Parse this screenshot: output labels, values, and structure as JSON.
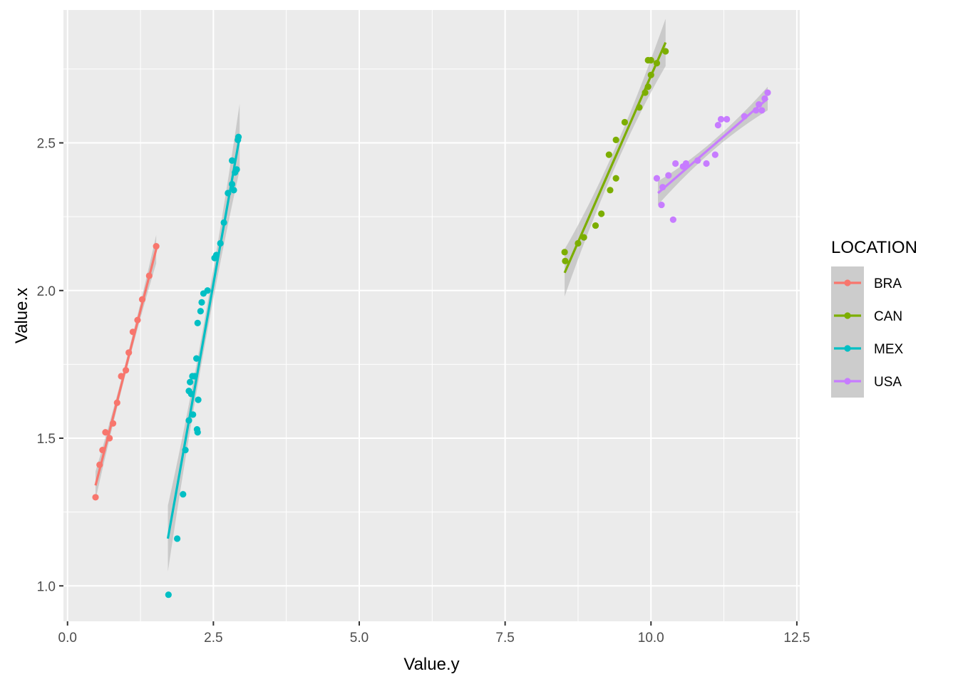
{
  "chart_data": {
    "type": "scatter",
    "xlabel": "Value.y",
    "ylabel": "Value.x",
    "xlim": [
      -0.07,
      12.55
    ],
    "ylim": [
      0.88,
      2.95
    ],
    "x_ticks": [
      0.0,
      2.5,
      5.0,
      7.5,
      10.0,
      12.5
    ],
    "x_tick_labels": [
      "0.0",
      "2.5",
      "5.0",
      "7.5",
      "10.0",
      "12.5"
    ],
    "y_ticks": [
      1.0,
      1.5,
      2.0,
      2.5
    ],
    "y_tick_labels": [
      "1.0",
      "1.5",
      "2.0",
      "2.5"
    ],
    "grid": true,
    "panel_background": "#ebebeb",
    "legend": {
      "title": "LOCATION",
      "position": "right"
    },
    "series": [
      {
        "name": "BRA",
        "color": "#f8766d",
        "fit": {
          "x0": 0.48,
          "y0": 1.34,
          "x1": 1.52,
          "y1": 2.14,
          "band": 0.03
        },
        "points": [
          [
            0.48,
            1.3
          ],
          [
            0.55,
            1.41
          ],
          [
            0.6,
            1.46
          ],
          [
            0.65,
            1.52
          ],
          [
            0.72,
            1.5
          ],
          [
            0.78,
            1.55
          ],
          [
            0.85,
            1.62
          ],
          [
            0.92,
            1.71
          ],
          [
            1.0,
            1.73
          ],
          [
            1.05,
            1.79
          ],
          [
            1.12,
            1.86
          ],
          [
            1.2,
            1.9
          ],
          [
            1.28,
            1.97
          ],
          [
            1.4,
            2.05
          ],
          [
            1.52,
            2.15
          ]
        ]
      },
      {
        "name": "CAN",
        "color": "#7cae00",
        "fit": {
          "x0": 8.52,
          "y0": 2.06,
          "x1": 10.25,
          "y1": 2.84,
          "band": 0.05
        },
        "points": [
          [
            8.52,
            2.13
          ],
          [
            8.53,
            2.1
          ],
          [
            8.75,
            2.16
          ],
          [
            8.85,
            2.18
          ],
          [
            9.05,
            2.22
          ],
          [
            9.15,
            2.26
          ],
          [
            9.3,
            2.34
          ],
          [
            9.28,
            2.46
          ],
          [
            9.4,
            2.38
          ],
          [
            9.4,
            2.51
          ],
          [
            9.55,
            2.57
          ],
          [
            9.8,
            2.62
          ],
          [
            9.9,
            2.67
          ],
          [
            9.95,
            2.69
          ],
          [
            10.0,
            2.73
          ],
          [
            9.95,
            2.78
          ],
          [
            10.0,
            2.78
          ],
          [
            10.1,
            2.77
          ],
          [
            10.25,
            2.81
          ]
        ]
      },
      {
        "name": "MEX",
        "color": "#00bfc4",
        "fit": {
          "x0": 1.72,
          "y0": 1.16,
          "x1": 2.95,
          "y1": 2.52,
          "band": 0.07
        },
        "points": [
          [
            1.73,
            0.97
          ],
          [
            1.88,
            1.16
          ],
          [
            1.98,
            1.31
          ],
          [
            2.02,
            1.46
          ],
          [
            2.08,
            1.56
          ],
          [
            2.08,
            1.66
          ],
          [
            2.1,
            1.69
          ],
          [
            2.12,
            1.65
          ],
          [
            2.14,
            1.71
          ],
          [
            2.15,
            1.58
          ],
          [
            2.18,
            1.71
          ],
          [
            2.21,
            1.77
          ],
          [
            2.22,
            1.53
          ],
          [
            2.23,
            1.52
          ],
          [
            2.24,
            1.63
          ],
          [
            2.23,
            1.89
          ],
          [
            2.28,
            1.93
          ],
          [
            2.3,
            1.96
          ],
          [
            2.33,
            1.99
          ],
          [
            2.4,
            2.0
          ],
          [
            2.52,
            2.11
          ],
          [
            2.55,
            2.12
          ],
          [
            2.62,
            2.16
          ],
          [
            2.68,
            2.23
          ],
          [
            2.75,
            2.33
          ],
          [
            2.82,
            2.36
          ],
          [
            2.82,
            2.44
          ],
          [
            2.85,
            2.34
          ],
          [
            2.87,
            2.4
          ],
          [
            2.9,
            2.41
          ],
          [
            2.92,
            2.51
          ],
          [
            2.93,
            2.52
          ]
        ]
      },
      {
        "name": "USA",
        "color": "#c77cff",
        "fit": {
          "x0": 10.12,
          "y0": 2.33,
          "x1": 12.0,
          "y1": 2.65,
          "band": 0.025
        },
        "points": [
          [
            10.1,
            2.38
          ],
          [
            10.18,
            2.29
          ],
          [
            10.2,
            2.35
          ],
          [
            10.3,
            2.39
          ],
          [
            10.38,
            2.24
          ],
          [
            10.42,
            2.43
          ],
          [
            10.55,
            2.42
          ],
          [
            10.6,
            2.43
          ],
          [
            10.8,
            2.44
          ],
          [
            10.95,
            2.43
          ],
          [
            11.1,
            2.46
          ],
          [
            11.15,
            2.56
          ],
          [
            11.2,
            2.58
          ],
          [
            11.3,
            2.58
          ],
          [
            11.6,
            2.59
          ],
          [
            11.8,
            2.61
          ],
          [
            11.9,
            2.61
          ],
          [
            11.95,
            2.65
          ],
          [
            11.85,
            2.63
          ],
          [
            12.0,
            2.67
          ]
        ]
      }
    ]
  }
}
